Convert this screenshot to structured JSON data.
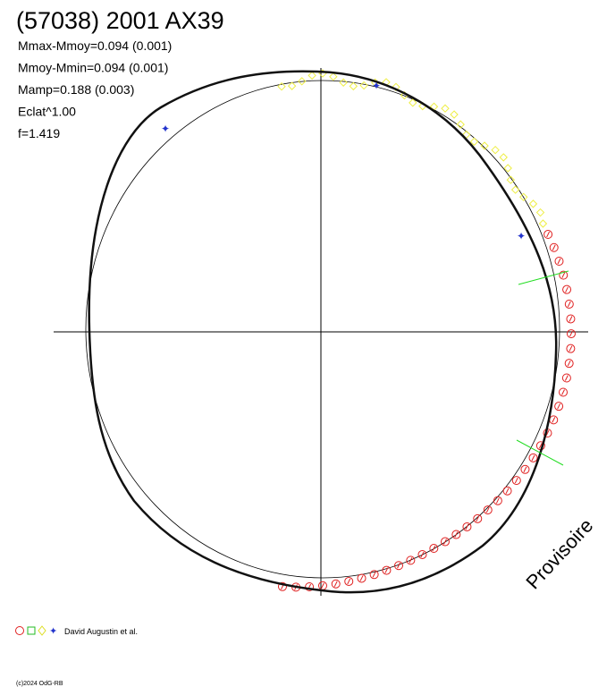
{
  "header": {
    "title": "(57038) 2001 AX39"
  },
  "stats": [
    "Mmax-Mmoy=0.094 (0.001)",
    "Mmoy-Mmin=0.094 (0.001)",
    "Mamp=0.188 (0.003)",
    "Eclat^1.00",
    "f=1.419"
  ],
  "legend": {
    "label": "David Augustin et al."
  },
  "watermark": "Provisoire",
  "footer": "(c)2024 OdG-RB"
}
